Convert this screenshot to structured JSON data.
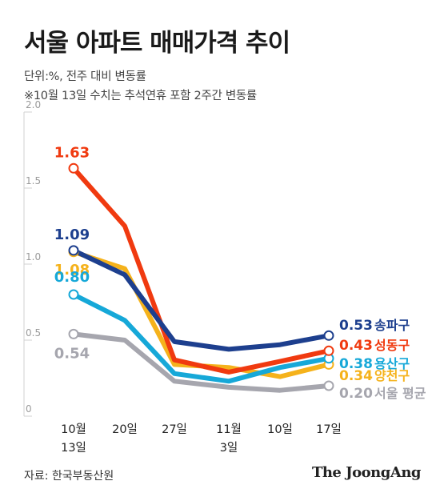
{
  "header": {
    "title": "서울 아파트 매매가격 추이",
    "unit_note": "단위:%, 전주 대비 변동률",
    "footnote": "※10월 13일 수치는 추석연휴 포함 2주간 변동률"
  },
  "footer": {
    "source": "자료: 한국부동산원",
    "brand": "The JoongAng"
  },
  "chart_data": {
    "type": "line",
    "title": "서울 아파트 매매가격 추이",
    "xlabel": "",
    "ylabel": "",
    "categories": [
      "10월 13일",
      "20일",
      "27일",
      "11월 3일",
      "10일",
      "17일"
    ],
    "category_lines": [
      [
        "10월",
        "13일"
      ],
      [
        "20일"
      ],
      [
        "27일"
      ],
      [
        "11월",
        "3일"
      ],
      [
        "10일"
      ],
      [
        "17일"
      ]
    ],
    "ylim": [
      0,
      2.0
    ],
    "yticks": [
      "0",
      "0.5",
      "1.0",
      "1.5",
      "2.0"
    ],
    "grid": false,
    "series": [
      {
        "name": "서울 평균",
        "color": "#a6a6ae",
        "values": [
          0.54,
          0.5,
          0.23,
          0.19,
          0.17,
          0.2
        ],
        "start_label": "0.54",
        "end_label": "0.20"
      },
      {
        "name": "양천구",
        "color": "#f5b21b",
        "values": [
          1.08,
          0.97,
          0.34,
          0.32,
          0.26,
          0.34
        ],
        "start_label": "1.08",
        "end_label": "0.34"
      },
      {
        "name": "용산구",
        "color": "#16a8d8",
        "values": [
          0.8,
          0.63,
          0.28,
          0.23,
          0.32,
          0.38
        ],
        "start_label": "0.80",
        "end_label": "0.38"
      },
      {
        "name": "성동구",
        "color": "#f03a10",
        "values": [
          1.63,
          1.25,
          0.37,
          0.29,
          0.36,
          0.43
        ],
        "start_label": "1.63",
        "end_label": "0.43"
      },
      {
        "name": "송파구",
        "color": "#1d3f8e",
        "values": [
          1.09,
          0.93,
          0.49,
          0.44,
          0.47,
          0.53
        ],
        "start_label": "1.09",
        "end_label": "0.53"
      }
    ]
  }
}
